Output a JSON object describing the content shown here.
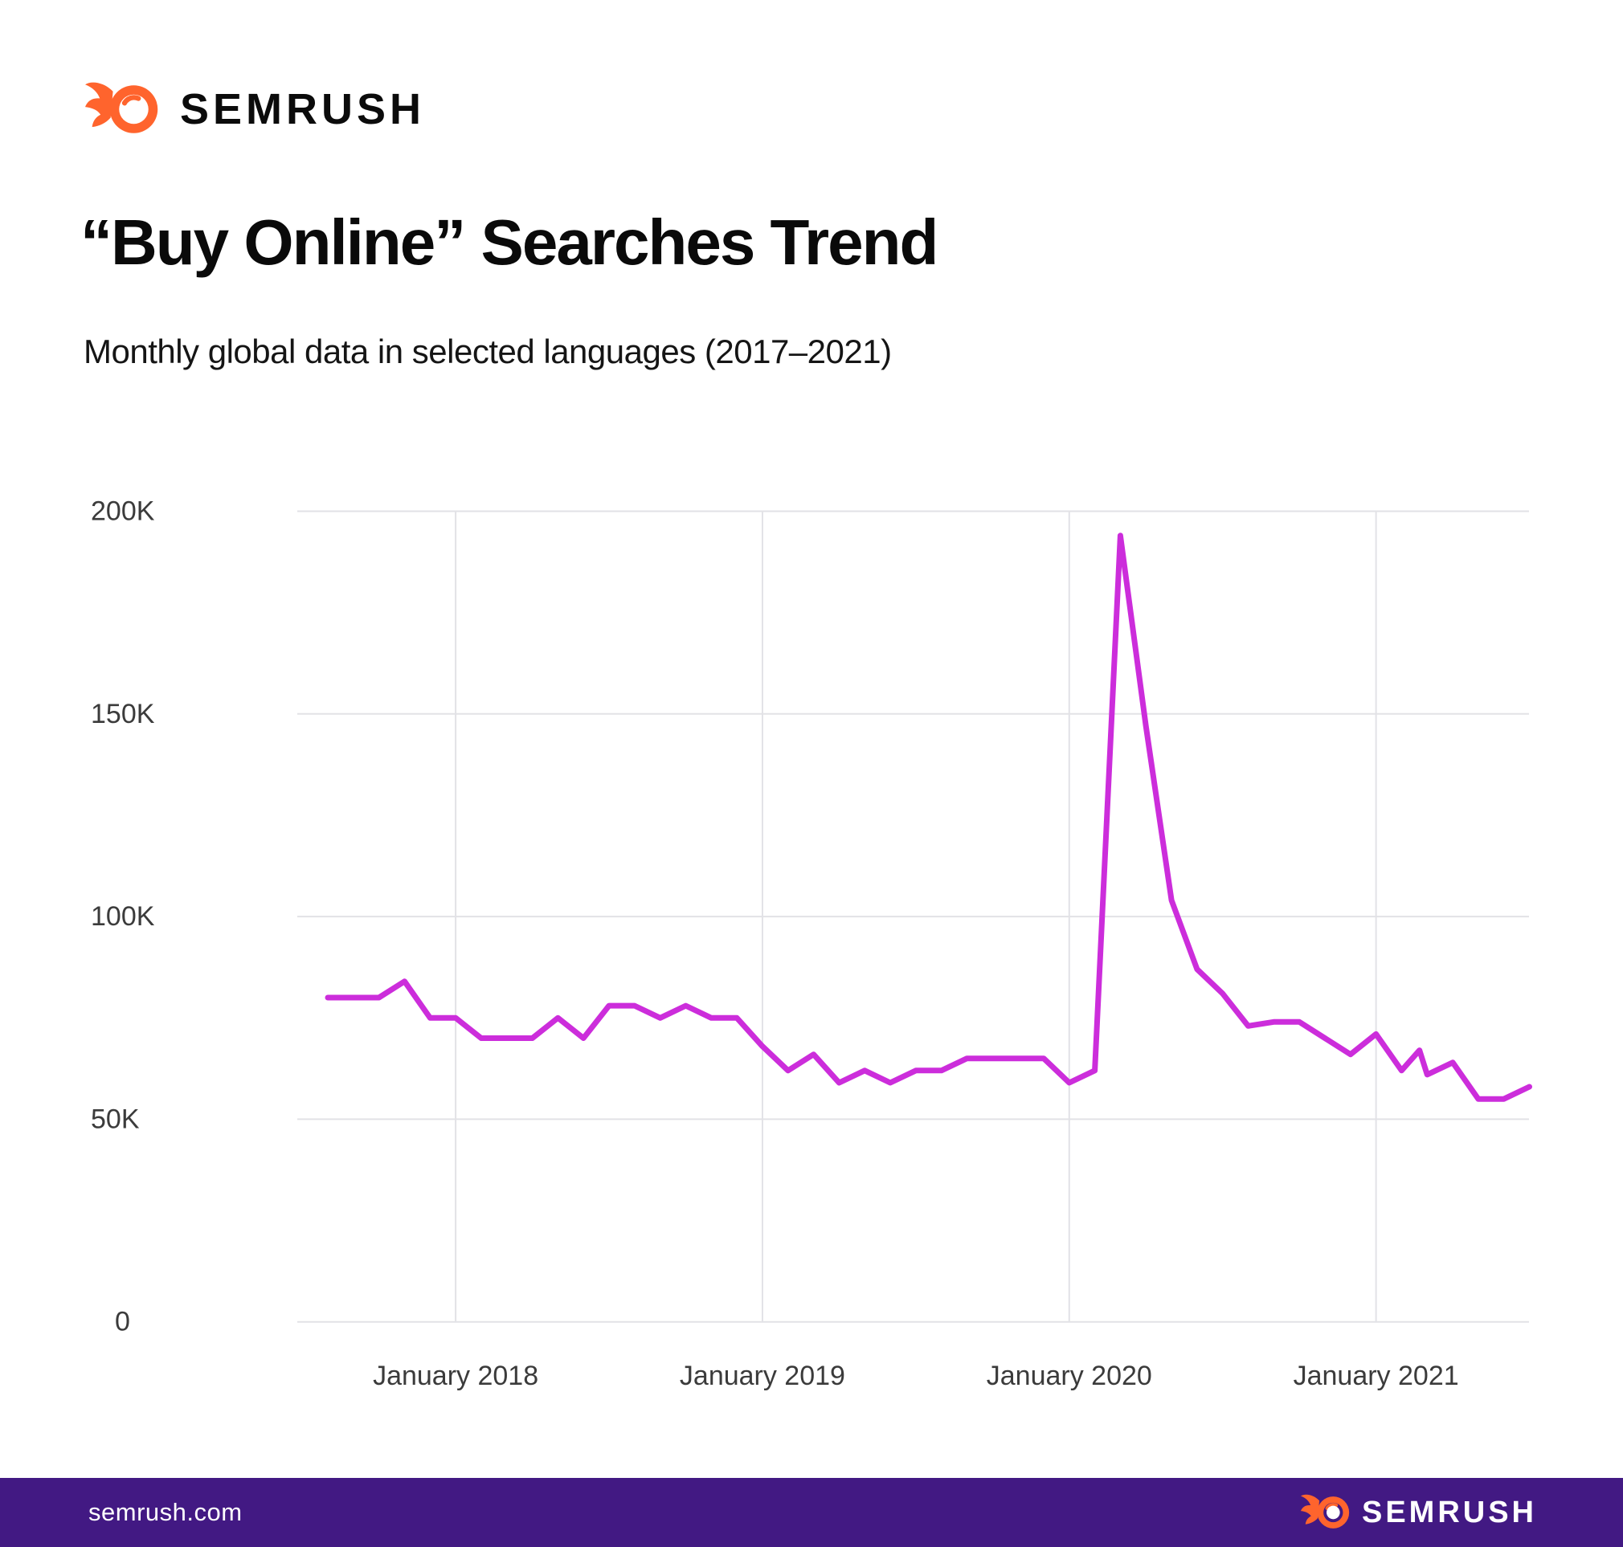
{
  "header": {
    "logo_text": "SEMRUSH",
    "logo_color": "#FF642D"
  },
  "title": "“Buy Online” Searches Trend",
  "subtitle": "Monthly global data in selected languages (2017–2021)",
  "chart_data": {
    "type": "line",
    "title": "“Buy Online” Searches Trend",
    "subtitle": "Monthly global data in selected languages (2017–2021)",
    "xlabel": "",
    "ylabel": "",
    "ylim": [
      0,
      200000
    ],
    "grid": true,
    "legend_position": "none",
    "line_color": "#CC2DDB",
    "gridline_color": "#E2E2E6",
    "axis_label_color": "#3B3B3B",
    "y_ticks": [
      {
        "value": 0,
        "label": "0"
      },
      {
        "value": 50000,
        "label": "50K"
      },
      {
        "value": 100000,
        "label": "100K"
      },
      {
        "value": 150000,
        "label": "150K"
      },
      {
        "value": 200000,
        "label": "200K"
      }
    ],
    "x_ticks": [
      {
        "index": 5,
        "label": "January 2018"
      },
      {
        "index": 17,
        "label": "January 2019"
      },
      {
        "index": 29,
        "label": "January 2020"
      },
      {
        "index": 41,
        "label": "January 2021"
      }
    ],
    "x_unit": "months since August 2017",
    "series": [
      {
        "name": "\"buy online\" monthly search volume",
        "color": "#CC2DDB",
        "points": [
          {
            "i": 0,
            "month": "Aug 2017",
            "v": 80000
          },
          {
            "i": 1,
            "month": "Sep 2017",
            "v": 80000
          },
          {
            "i": 2,
            "month": "Oct 2017",
            "v": 80000
          },
          {
            "i": 3,
            "month": "Nov 2017",
            "v": 84000
          },
          {
            "i": 4,
            "month": "Dec 2017",
            "v": 75000
          },
          {
            "i": 5,
            "month": "Jan 2018",
            "v": 75000
          },
          {
            "i": 6,
            "month": "Feb 2018",
            "v": 70000
          },
          {
            "i": 7,
            "month": "Mar 2018",
            "v": 70000
          },
          {
            "i": 8,
            "month": "Apr 2018",
            "v": 70000
          },
          {
            "i": 9,
            "month": "May 2018",
            "v": 75000
          },
          {
            "i": 10,
            "month": "Jun 2018",
            "v": 70000
          },
          {
            "i": 11,
            "month": "Jul 2018",
            "v": 78000
          },
          {
            "i": 12,
            "month": "Aug 2018",
            "v": 78000
          },
          {
            "i": 13,
            "month": "Sep 2018",
            "v": 75000
          },
          {
            "i": 14,
            "month": "Oct 2018",
            "v": 78000
          },
          {
            "i": 15,
            "month": "Nov 2018",
            "v": 75000
          },
          {
            "i": 16,
            "month": "Dec 2018",
            "v": 75000
          },
          {
            "i": 17,
            "month": "Jan 2019",
            "v": 68000
          },
          {
            "i": 18,
            "month": "Feb 2019",
            "v": 62000
          },
          {
            "i": 19,
            "month": "Mar 2019",
            "v": 66000
          },
          {
            "i": 20,
            "month": "Apr 2019",
            "v": 59000
          },
          {
            "i": 21,
            "month": "May 2019",
            "v": 62000
          },
          {
            "i": 22,
            "month": "Jun 2019",
            "v": 59000
          },
          {
            "i": 23,
            "month": "Jul 2019",
            "v": 62000
          },
          {
            "i": 24,
            "month": "Aug 2019",
            "v": 62000
          },
          {
            "i": 25,
            "month": "Sep 2019",
            "v": 65000
          },
          {
            "i": 26,
            "month": "Oct 2019",
            "v": 65000
          },
          {
            "i": 27,
            "month": "Nov 2019",
            "v": 65000
          },
          {
            "i": 28,
            "month": "Dec 2019",
            "v": 65000
          },
          {
            "i": 29,
            "month": "Jan 2020",
            "v": 59000
          },
          {
            "i": 30,
            "month": "Feb 2020",
            "v": 62000
          },
          {
            "i": 31,
            "month": "Mar 2020",
            "v": 194000
          },
          {
            "i": 32,
            "month": "Apr 2020",
            "v": 147000
          },
          {
            "i": 33,
            "month": "May 2020",
            "v": 104000
          },
          {
            "i": 34,
            "month": "Jun 2020",
            "v": 87000
          },
          {
            "i": 35,
            "month": "Jul 2020",
            "v": 81000
          },
          {
            "i": 36,
            "month": "Aug 2020",
            "v": 73000
          },
          {
            "i": 37,
            "month": "Sep 2020",
            "v": 74000
          },
          {
            "i": 38,
            "month": "Oct 2020",
            "v": 74000
          },
          {
            "i": 39,
            "month": "Nov 2020",
            "v": 70000
          },
          {
            "i": 40,
            "month": "Dec 2020",
            "v": 66000
          },
          {
            "i": 41,
            "month": "Jan 2021",
            "v": 71000
          },
          {
            "i": 42,
            "month": "Feb 2021",
            "v": 62000
          },
          {
            "i": 42.7,
            "month": "Feb 2021 (late)",
            "v": 67000
          },
          {
            "i": 43,
            "month": "Mar 2021",
            "v": 61000
          },
          {
            "i": 44,
            "month": "Apr 2021",
            "v": 64000
          },
          {
            "i": 45,
            "month": "May 2021",
            "v": 55000
          },
          {
            "i": 46,
            "month": "Jun 2021",
            "v": 55000
          },
          {
            "i": 47,
            "month": "Jul 2021",
            "v": 58000
          }
        ]
      }
    ]
  },
  "footer": {
    "site": "semrush.com",
    "logo_text": "SEMRUSH",
    "bar_color": "#421983"
  }
}
